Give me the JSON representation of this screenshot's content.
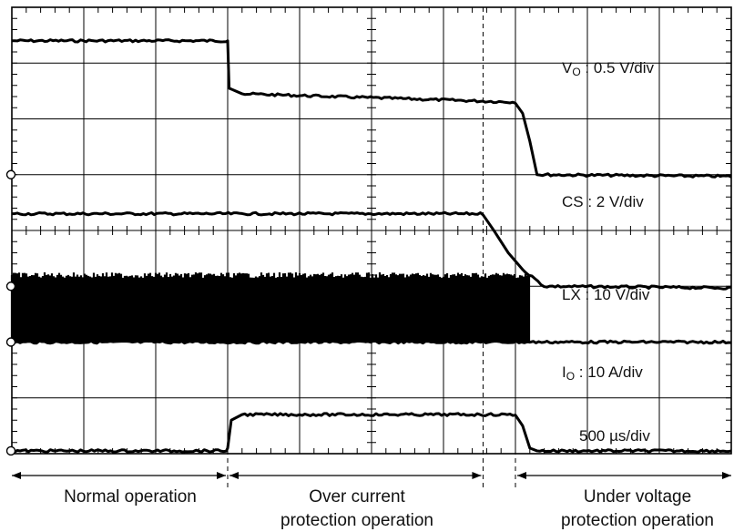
{
  "chart_data": {
    "type": "line",
    "title": "",
    "xlabel": "",
    "ylabel": "",
    "time_scale": "500 µs/div",
    "horizontal_divisions": 10,
    "vertical_divisions": 8,
    "x_unit": "div",
    "y_unit": "div",
    "xlim": [
      0,
      10
    ],
    "ylim": [
      0,
      8
    ],
    "events": {
      "ocp_start": 3.0,
      "cs_fall": 6.55,
      "uvp_start": 7.0
    },
    "series": [
      {
        "name": "VO : 0.5 V/div",
        "label_main": "V",
        "label_sub": "O",
        "label_rest": " : 0.5 V/div",
        "x": [
          0,
          2.98,
          3.0,
          3.02,
          3.2,
          7.0,
          7.1,
          7.2,
          7.3,
          10
        ],
        "y": [
          7.4,
          7.4,
          7.4,
          6.55,
          6.45,
          6.3,
          6.1,
          5.6,
          5.0,
          4.97
        ]
      },
      {
        "name": "CS : 2 V/div",
        "label_main": "CS",
        "label_sub": "",
        "label_rest": " : 2 V/div",
        "x": [
          0,
          6.55,
          6.7,
          6.9,
          7.1,
          7.4,
          10
        ],
        "y": [
          4.3,
          4.3,
          4.0,
          3.6,
          3.3,
          3.0,
          2.97
        ]
      },
      {
        "name": "LX : 10 V/div",
        "label_main": "LX",
        "label_sub": "",
        "label_rest": " : 10 V/div",
        "switching_band_high": 3.2,
        "switching_band_low": 2.0,
        "x": [
          0,
          7.2,
          7.21,
          10
        ],
        "y": [
          2.0,
          2.0,
          2.0,
          2.0
        ]
      },
      {
        "name": "IO : 10 A/div",
        "label_main": "I",
        "label_sub": "O",
        "label_rest": " : 10 A/div",
        "x": [
          0,
          2.98,
          3.0,
          3.05,
          3.2,
          7.0,
          7.1,
          7.2,
          7.3,
          10
        ],
        "y": [
          0.05,
          0.05,
          0.1,
          0.6,
          0.7,
          0.7,
          0.5,
          0.1,
          0.05,
          0.05
        ]
      }
    ],
    "annotations": [
      "500 µs/div"
    ],
    "grid": true
  },
  "phases": [
    {
      "label": "Normal operation",
      "lines": [
        "Normal operation"
      ]
    },
    {
      "label": "Over current protection operation",
      "lines": [
        "Over current",
        "protection operation"
      ]
    },
    {
      "label": "Under voltage protection operation",
      "lines": [
        "Under voltage",
        "protection operation"
      ]
    }
  ]
}
